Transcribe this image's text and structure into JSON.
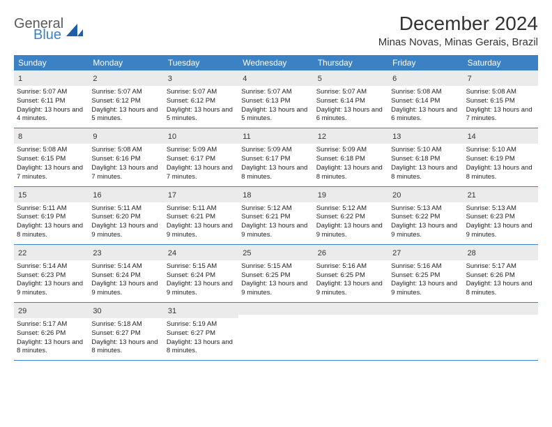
{
  "brand": {
    "word1": "General",
    "word2": "Blue",
    "mark_color": "#1f5fa8"
  },
  "title": "December 2024",
  "location": "Minas Novas, Minas Gerais, Brazil",
  "colors": {
    "header_bg": "#3b82c4",
    "daynum_bg": "#ebebeb",
    "week_border": "#3b82c4",
    "text": "#333333",
    "body_text": "#222222"
  },
  "weekdays": [
    "Sunday",
    "Monday",
    "Tuesday",
    "Wednesday",
    "Thursday",
    "Friday",
    "Saturday"
  ],
  "weeks": [
    [
      {
        "n": "1",
        "sr": "5:07 AM",
        "ss": "6:11 PM",
        "dl": "13 hours and 4 minutes."
      },
      {
        "n": "2",
        "sr": "5:07 AM",
        "ss": "6:12 PM",
        "dl": "13 hours and 5 minutes."
      },
      {
        "n": "3",
        "sr": "5:07 AM",
        "ss": "6:12 PM",
        "dl": "13 hours and 5 minutes."
      },
      {
        "n": "4",
        "sr": "5:07 AM",
        "ss": "6:13 PM",
        "dl": "13 hours and 5 minutes."
      },
      {
        "n": "5",
        "sr": "5:07 AM",
        "ss": "6:14 PM",
        "dl": "13 hours and 6 minutes."
      },
      {
        "n": "6",
        "sr": "5:08 AM",
        "ss": "6:14 PM",
        "dl": "13 hours and 6 minutes."
      },
      {
        "n": "7",
        "sr": "5:08 AM",
        "ss": "6:15 PM",
        "dl": "13 hours and 7 minutes."
      }
    ],
    [
      {
        "n": "8",
        "sr": "5:08 AM",
        "ss": "6:15 PM",
        "dl": "13 hours and 7 minutes."
      },
      {
        "n": "9",
        "sr": "5:08 AM",
        "ss": "6:16 PM",
        "dl": "13 hours and 7 minutes."
      },
      {
        "n": "10",
        "sr": "5:09 AM",
        "ss": "6:17 PM",
        "dl": "13 hours and 7 minutes."
      },
      {
        "n": "11",
        "sr": "5:09 AM",
        "ss": "6:17 PM",
        "dl": "13 hours and 8 minutes."
      },
      {
        "n": "12",
        "sr": "5:09 AM",
        "ss": "6:18 PM",
        "dl": "13 hours and 8 minutes."
      },
      {
        "n": "13",
        "sr": "5:10 AM",
        "ss": "6:18 PM",
        "dl": "13 hours and 8 minutes."
      },
      {
        "n": "14",
        "sr": "5:10 AM",
        "ss": "6:19 PM",
        "dl": "13 hours and 8 minutes."
      }
    ],
    [
      {
        "n": "15",
        "sr": "5:11 AM",
        "ss": "6:19 PM",
        "dl": "13 hours and 8 minutes."
      },
      {
        "n": "16",
        "sr": "5:11 AM",
        "ss": "6:20 PM",
        "dl": "13 hours and 9 minutes."
      },
      {
        "n": "17",
        "sr": "5:11 AM",
        "ss": "6:21 PM",
        "dl": "13 hours and 9 minutes."
      },
      {
        "n": "18",
        "sr": "5:12 AM",
        "ss": "6:21 PM",
        "dl": "13 hours and 9 minutes."
      },
      {
        "n": "19",
        "sr": "5:12 AM",
        "ss": "6:22 PM",
        "dl": "13 hours and 9 minutes."
      },
      {
        "n": "20",
        "sr": "5:13 AM",
        "ss": "6:22 PM",
        "dl": "13 hours and 9 minutes."
      },
      {
        "n": "21",
        "sr": "5:13 AM",
        "ss": "6:23 PM",
        "dl": "13 hours and 9 minutes."
      }
    ],
    [
      {
        "n": "22",
        "sr": "5:14 AM",
        "ss": "6:23 PM",
        "dl": "13 hours and 9 minutes."
      },
      {
        "n": "23",
        "sr": "5:14 AM",
        "ss": "6:24 PM",
        "dl": "13 hours and 9 minutes."
      },
      {
        "n": "24",
        "sr": "5:15 AM",
        "ss": "6:24 PM",
        "dl": "13 hours and 9 minutes."
      },
      {
        "n": "25",
        "sr": "5:15 AM",
        "ss": "6:25 PM",
        "dl": "13 hours and 9 minutes."
      },
      {
        "n": "26",
        "sr": "5:16 AM",
        "ss": "6:25 PM",
        "dl": "13 hours and 9 minutes."
      },
      {
        "n": "27",
        "sr": "5:16 AM",
        "ss": "6:25 PM",
        "dl": "13 hours and 9 minutes."
      },
      {
        "n": "28",
        "sr": "5:17 AM",
        "ss": "6:26 PM",
        "dl": "13 hours and 8 minutes."
      }
    ],
    [
      {
        "n": "29",
        "sr": "5:17 AM",
        "ss": "6:26 PM",
        "dl": "13 hours and 8 minutes."
      },
      {
        "n": "30",
        "sr": "5:18 AM",
        "ss": "6:27 PM",
        "dl": "13 hours and 8 minutes."
      },
      {
        "n": "31",
        "sr": "5:19 AM",
        "ss": "6:27 PM",
        "dl": "13 hours and 8 minutes."
      },
      null,
      null,
      null,
      null
    ]
  ],
  "labels": {
    "sunrise": "Sunrise:",
    "sunset": "Sunset:",
    "daylight": "Daylight:"
  }
}
